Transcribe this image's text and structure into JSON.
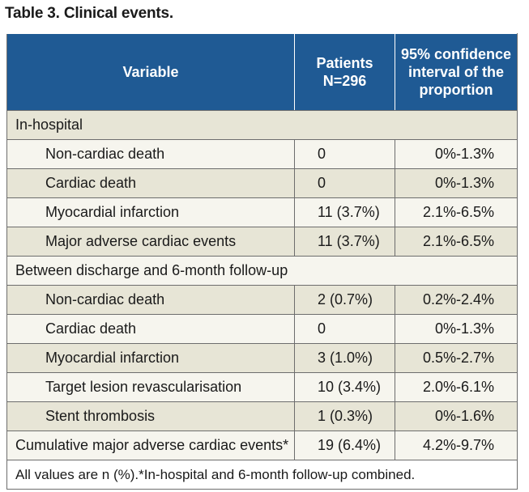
{
  "title": "Table 3. Clinical events.",
  "headers": {
    "variable": "Variable",
    "patients_line1": "Patients",
    "patients_line2": "N=296",
    "ci_line1": "95% confidence",
    "ci_line2": "interval of the",
    "ci_line3": "proportion"
  },
  "sections": [
    {
      "label": "In-hospital",
      "rows": [
        {
          "variable": "Non-cardiac death",
          "patients": "0",
          "ci": "0%-1.3%"
        },
        {
          "variable": "Cardiac death",
          "patients": "0",
          "ci": "0%-1.3%"
        },
        {
          "variable": "Myocardial infarction",
          "patients": "11 (3.7%)",
          "ci": "2.1%-6.5%"
        },
        {
          "variable": "Major adverse cardiac events",
          "patients": "11 (3.7%)",
          "ci": "2.1%-6.5%"
        }
      ]
    },
    {
      "label": "Between discharge and 6-month follow-up",
      "rows": [
        {
          "variable": "Non-cardiac death",
          "patients": "2 (0.7%)",
          "ci": "0.2%-2.4%"
        },
        {
          "variable": "Cardiac death",
          "patients": "0",
          "ci": "0%-1.3%"
        },
        {
          "variable": "Myocardial infarction",
          "patients": "3 (1.0%)",
          "ci": "0.5%-2.7%"
        },
        {
          "variable": "Target lesion revascularisation",
          "patients": "10 (3.4%)",
          "ci": "2.0%-6.1%"
        },
        {
          "variable": "Stent thrombosis",
          "patients": "1 (0.3%)",
          "ci": "0%-1.6%"
        }
      ]
    }
  ],
  "cumulative": {
    "variable": "Cumulative major adverse cardiac events*",
    "patients": "19 (6.4%)",
    "ci": "4.2%-9.7%"
  },
  "footnote": "All values are n (%).*In-hospital and 6-month follow-up combined.",
  "colors": {
    "header_bg": "#1f5a94",
    "shade_bg": "#e7e5d6",
    "plain_bg": "#f6f5ee"
  }
}
